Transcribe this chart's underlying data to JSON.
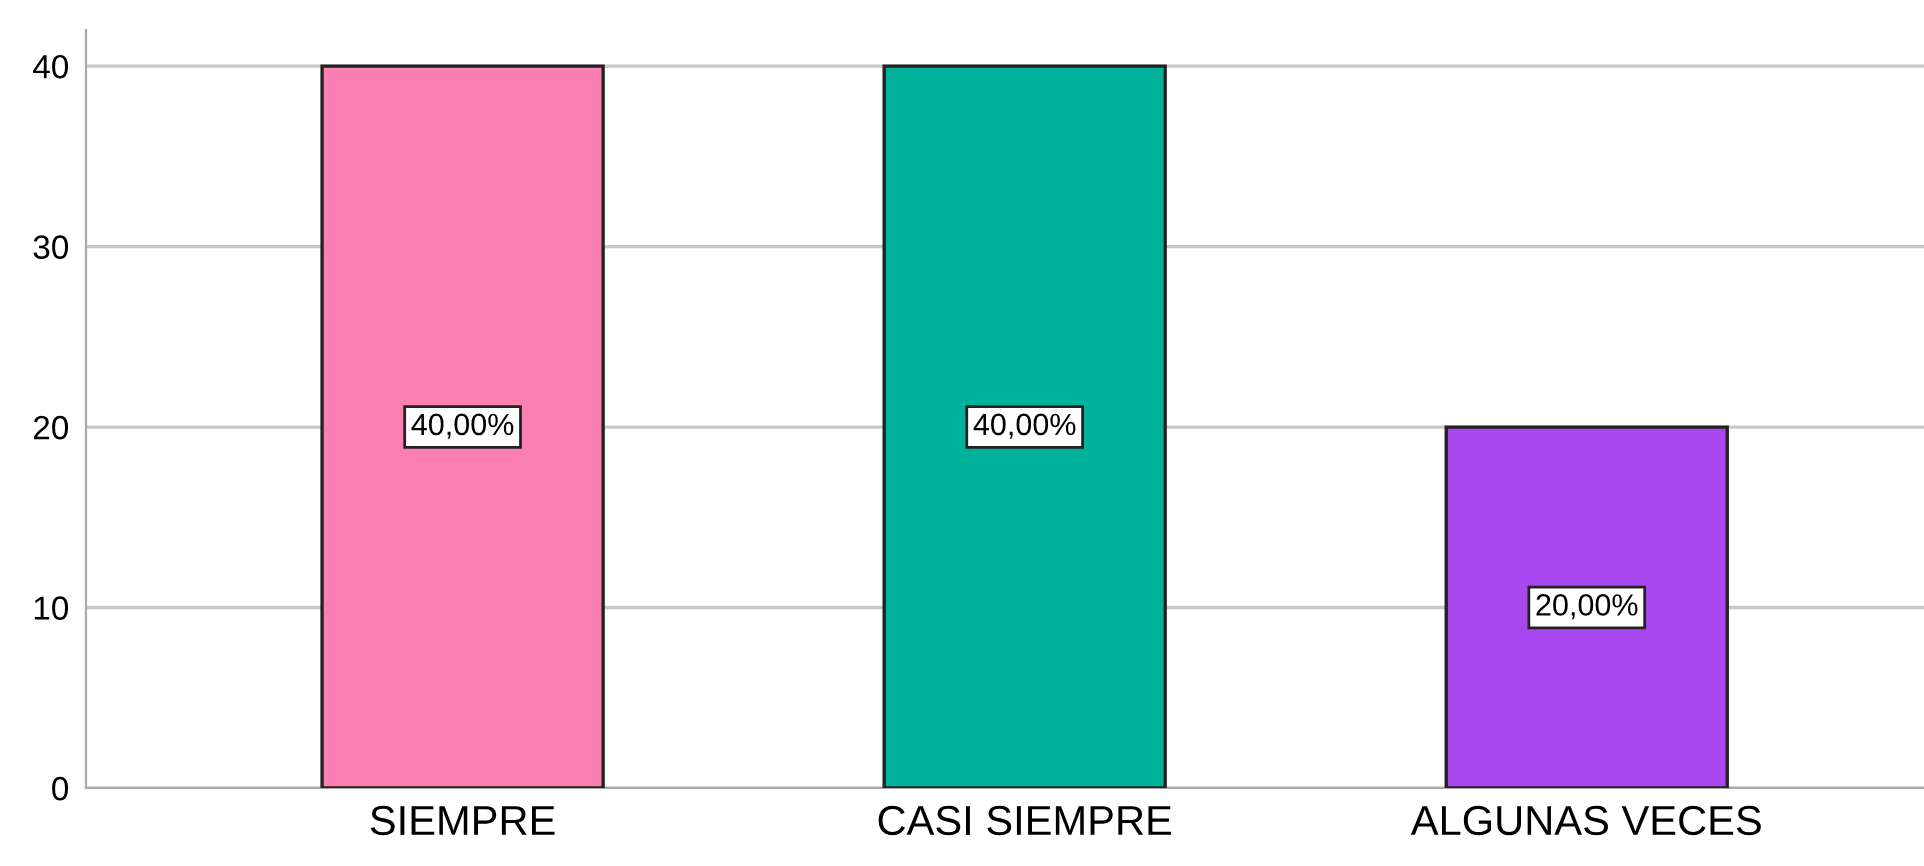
{
  "chart_data": {
    "type": "bar",
    "categories": [
      "SIEMPRE",
      "CASI SIEMPRE",
      "ALGUNAS VECES"
    ],
    "values": [
      40,
      40,
      20
    ],
    "colors": [
      "#fb80b1",
      "#00b29b",
      "#a846ef"
    ],
    "value_labels": [
      "40,00%",
      "40,00%",
      "20,00%"
    ],
    "ylim": [
      0,
      42
    ],
    "yticks": [
      0,
      10,
      20,
      30,
      40
    ],
    "grid": "y",
    "legend": false
  }
}
